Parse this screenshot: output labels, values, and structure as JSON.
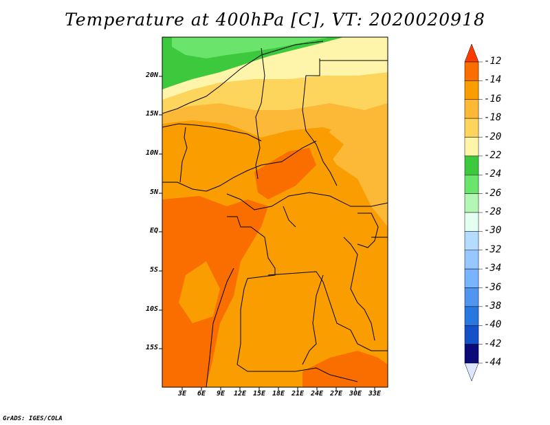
{
  "title": "Temperature at 400hPa [C], VT: 2020020918",
  "credit": "GrADS: IGES/COLA",
  "map": {
    "region": "Central Africa",
    "lat_labels": [
      "20N",
      "15N",
      "10N",
      "5N",
      "EQ",
      "5S",
      "10S",
      "15S"
    ],
    "lon_labels": [
      "3E",
      "6E",
      "9E",
      "12E",
      "15E",
      "18E",
      "21E",
      "24E",
      "27E",
      "30E",
      "33E"
    ],
    "lat_values": [
      20,
      15,
      10,
      5,
      0,
      -5,
      -10,
      -15
    ],
    "lon_values": [
      3,
      6,
      9,
      12,
      15,
      18,
      21,
      24,
      27,
      30,
      33
    ],
    "lat_range": [
      -20,
      24.5
    ],
    "lon_range": [
      0,
      35
    ],
    "variable": "Temperature",
    "level": "400hPa",
    "units": "C"
  },
  "colorbar": {
    "labels": [
      "-12",
      "-14",
      "-16",
      "-18",
      "-20",
      "-22",
      "-24",
      "-26",
      "-28",
      "-30",
      "-32",
      "-34",
      "-36",
      "-38",
      "-40",
      "-42",
      "-44"
    ],
    "colors": [
      "#ff3c00",
      "#fa6e00",
      "#f99d00",
      "#fcb937",
      "#fdd55c",
      "#fff5aa",
      "#3dc93d",
      "#6ae46a",
      "#b4f6b4",
      "#e2fff2",
      "#b4dcff",
      "#96c8ff",
      "#78b4ff",
      "#5096f0",
      "#2878e0",
      "#1450c8",
      "#0a0a78"
    ],
    "top_tip_color": "#ff3c00",
    "bottom_tip_color": "#e0e6ff"
  }
}
